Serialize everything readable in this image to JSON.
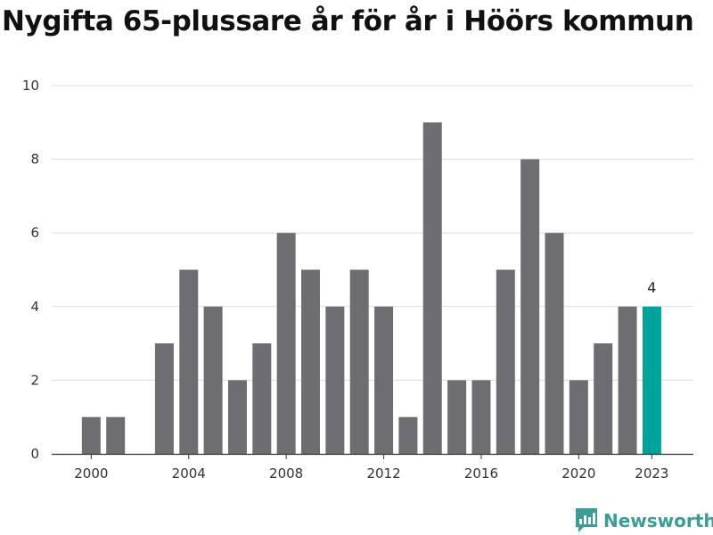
{
  "chart_data": {
    "type": "bar",
    "title": "Nygifta 65-plussare år för år i Höörs kommun",
    "x": [
      2000,
      2001,
      2002,
      2003,
      2004,
      2005,
      2006,
      2007,
      2008,
      2009,
      2010,
      2011,
      2012,
      2013,
      2014,
      2015,
      2016,
      2017,
      2018,
      2019,
      2020,
      2021,
      2022,
      2023
    ],
    "values": [
      1,
      1,
      0,
      3,
      5,
      4,
      2,
      3,
      6,
      5,
      4,
      5,
      4,
      1,
      9,
      2,
      2,
      5,
      8,
      6,
      2,
      3,
      4,
      4
    ],
    "x_tick_labels": [
      "2000",
      "2004",
      "2008",
      "2012",
      "2016",
      "2020",
      "2023"
    ],
    "y_ticks": [
      0,
      2,
      4,
      6,
      8,
      10
    ],
    "ylim": [
      0,
      10
    ],
    "highlight": {
      "year": 2023,
      "label": "4"
    },
    "xlabel": "",
    "ylabel": "",
    "grid": "horizontal",
    "colors": {
      "bar": "#6e6d72",
      "highlight": "#00a39a",
      "grid": "#dcdcdc",
      "axis": "#333333"
    }
  },
  "brand": {
    "name": "Newsworthy",
    "icon": "newsworthy-logo-icon",
    "color": "#3a9e97"
  }
}
